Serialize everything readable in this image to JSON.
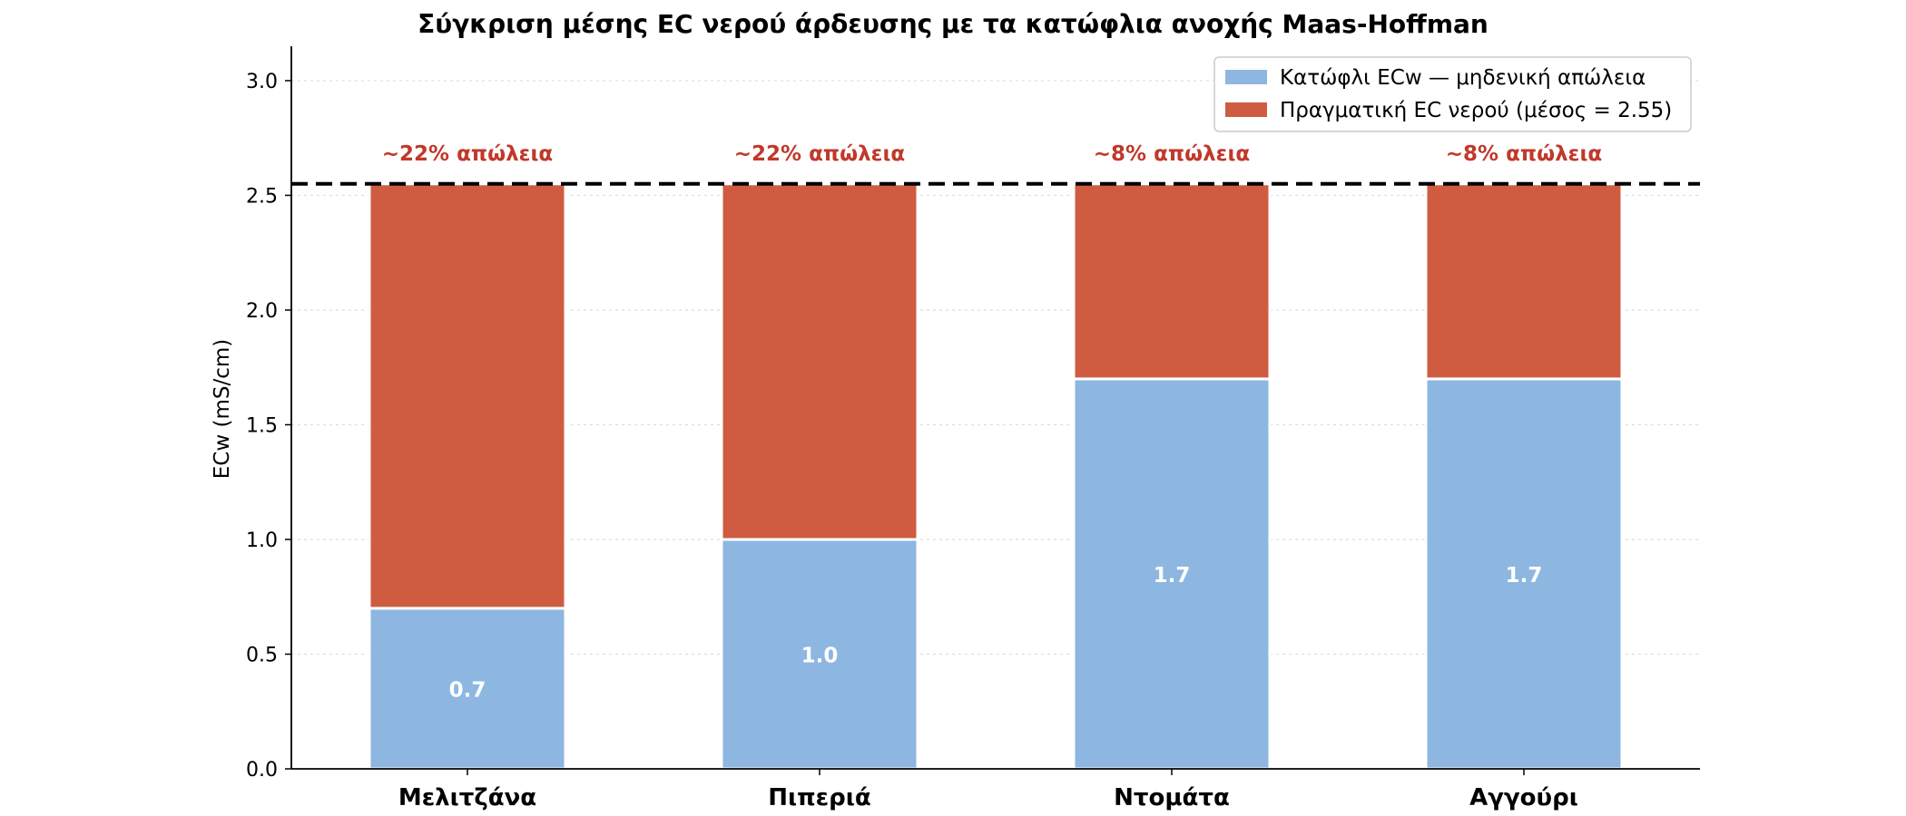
{
  "chart_data": {
    "type": "bar",
    "stacked": true,
    "title": "Σύγκριση μέσης EC νερού άρδευσης με τα κατώφλια ανοχής Maas-Hoffman",
    "xlabel": "",
    "ylabel": "ECw (mS/cm)",
    "ylim": [
      0,
      3.15
    ],
    "yticks": [
      "0.0",
      "0.5",
      "1.0",
      "1.5",
      "2.0",
      "2.5",
      "3.0"
    ],
    "ytick_values": [
      0,
      0.5,
      1.0,
      1.5,
      2.0,
      2.5,
      3.0
    ],
    "grid": "horizontal-dotted",
    "legend_position": "top-right",
    "categories": [
      "Μελιτζάνα",
      "Πιπεριά",
      "Ντομάτα",
      "Αγγούρι"
    ],
    "series": [
      {
        "name": "Κατώφλι ECw — μηδενική απώλεια",
        "color": "#8db7e1",
        "values": [
          0.7,
          1.0,
          1.7,
          1.7
        ],
        "labels": [
          "0.7",
          "1.0",
          "1.7",
          "1.7"
        ]
      },
      {
        "name": "Πραγματική EC νερού (μέσος = 2.55)",
        "color": "#cf5c40",
        "values": [
          1.85,
          1.55,
          0.85,
          0.85
        ]
      }
    ],
    "reference_line": {
      "value": 2.55,
      "style": "dashed",
      "color": "#000000"
    },
    "annotations": [
      "~22% απώλεια",
      "~22% απώλεια",
      "~8% απώλεια",
      "~8% απώλεια"
    ],
    "annotation_color": "#c0392b"
  }
}
